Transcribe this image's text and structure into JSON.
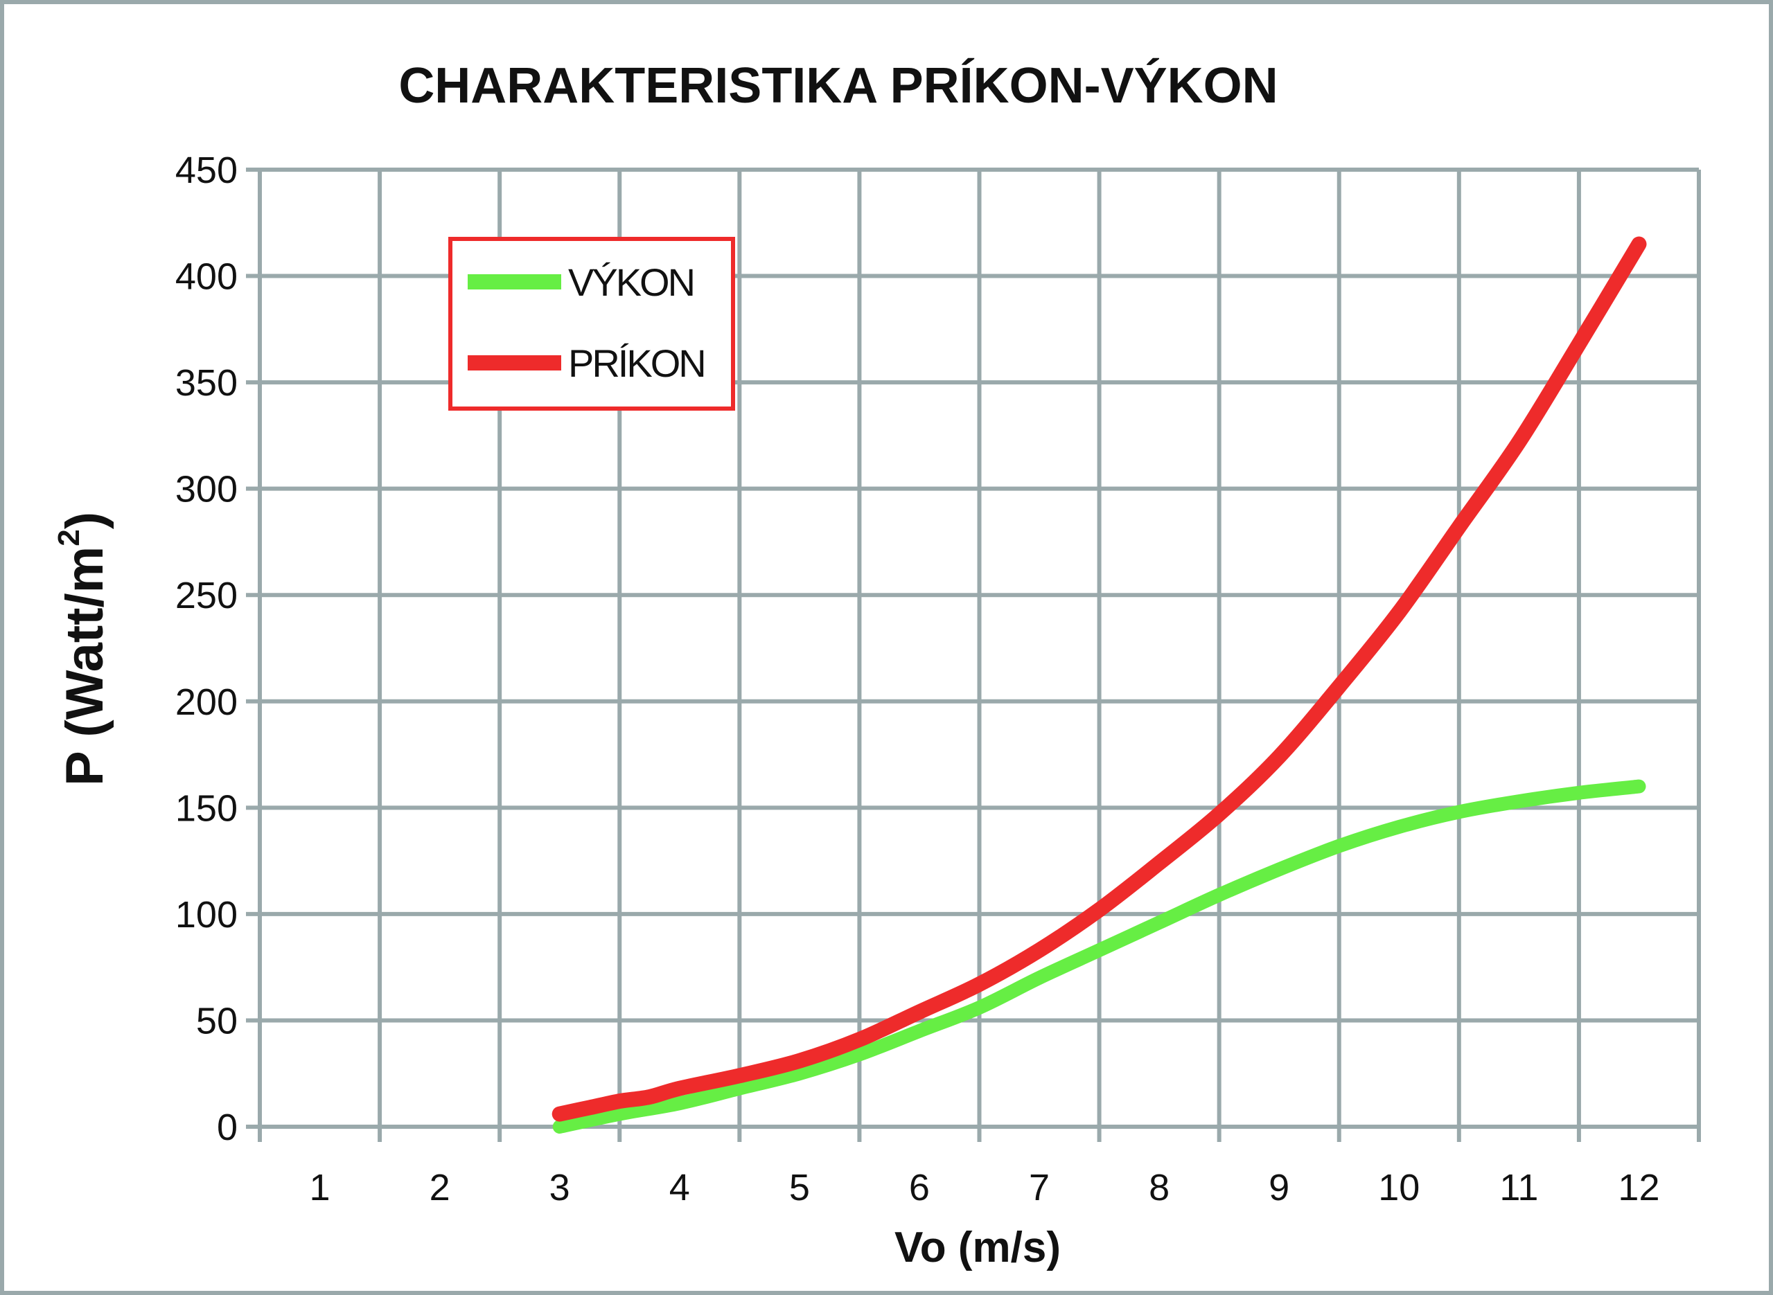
{
  "chart_data": {
    "type": "line",
    "title": "CHARAKTERISTIKA PRÍKON-VÝKON",
    "xlabel": "Vo (m/s)",
    "ylabel": "P (Watt/m",
    "ylabel_sup": "2",
    "ylabel_close": ")",
    "categories": [
      "1",
      "2",
      "3",
      "4",
      "5",
      "6",
      "7",
      "8",
      "9",
      "10",
      "11",
      "12"
    ],
    "x_range": [
      0.5,
      12.5
    ],
    "ylim": [
      0,
      450
    ],
    "yticks": [
      "0",
      "50",
      "100",
      "150",
      "200",
      "250",
      "300",
      "350",
      "400",
      "450"
    ],
    "grid": true,
    "legend_position": "top-left",
    "series": [
      {
        "name": "VÝKON",
        "color": "#66ee44",
        "x": [
          3,
          3.5,
          4,
          4.5,
          5,
          5.5,
          6,
          6.5,
          7,
          7.5,
          8,
          8.5,
          9,
          9.5,
          10,
          10.5,
          11,
          11.5,
          12
        ],
        "y": [
          0,
          6,
          11,
          18,
          25,
          34,
          45,
          56,
          70,
          83,
          96,
          109,
          121,
          132,
          141,
          148,
          153,
          157,
          160
        ]
      },
      {
        "name": "PRÍKON",
        "color": "#ee2b2b",
        "x": [
          3,
          3.25,
          3.5,
          3.75,
          4,
          4.5,
          5,
          5.5,
          6,
          6.5,
          7,
          7.5,
          8,
          8.5,
          9,
          9.5,
          10,
          10.5,
          11,
          11.5,
          12
        ],
        "y": [
          6,
          9,
          12,
          14,
          18,
          24,
          31,
          41,
          54,
          67,
          83,
          102,
          124,
          147,
          174,
          207,
          242,
          282,
          322,
          368,
          415
        ]
      }
    ]
  }
}
